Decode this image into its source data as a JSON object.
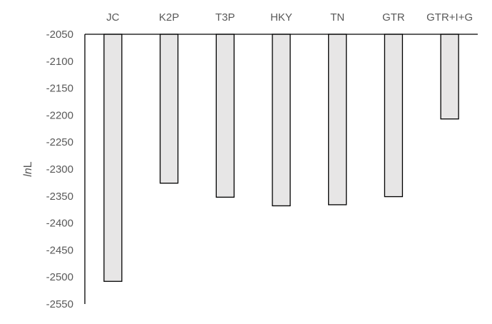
{
  "chart_data": {
    "type": "bar",
    "categories": [
      "JC",
      "K2P",
      "T3P",
      "HKY",
      "TN",
      "GTR",
      "GTR+I+G"
    ],
    "values": [
      -2508,
      -2326,
      -2352,
      -2368,
      -2366,
      -2351,
      -2207
    ],
    "ylabel_italic": "ln",
    "ylabel_rest": "L",
    "ylim": [
      -2550,
      -2050
    ],
    "yticks": [
      -2050,
      -2100,
      -2150,
      -2200,
      -2250,
      -2300,
      -2350,
      -2400,
      -2450,
      -2500,
      -2550
    ],
    "category_axis_position": "top",
    "bar_fill": "#e7e6e6",
    "bar_stroke": "#000000",
    "grid": false,
    "legend": "none"
  }
}
